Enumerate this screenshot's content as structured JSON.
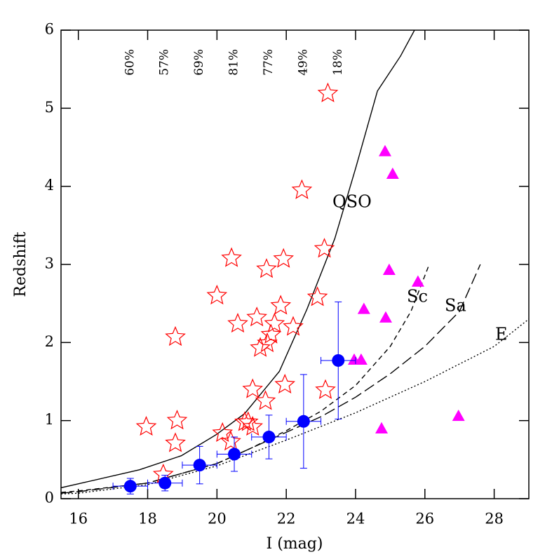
{
  "chart_data": {
    "type": "scatter",
    "xlabel": "I (mag)",
    "ylabel": "Redshift",
    "xlim": [
      15.5,
      29
    ],
    "ylim": [
      0,
      6
    ],
    "xticks": [
      16,
      18,
      20,
      22,
      24,
      26,
      28
    ],
    "yticks": [
      0,
      1,
      2,
      3,
      4,
      5,
      6
    ],
    "stars": {
      "color": "#ff0000",
      "x": [
        23.2,
        22.45,
        23.1,
        20.42,
        21.43,
        21.92,
        20.0,
        22.9,
        21.84,
        20.6,
        21.15,
        21.66,
        22.2,
        18.8,
        21.56,
        21.45,
        21.25,
        21.03,
        23.13,
        21.96,
        21.4,
        17.96,
        18.85,
        18.8,
        20.16,
        20.9,
        21.03,
        20.8,
        20.4,
        18.45
      ],
      "y": [
        5.19,
        3.95,
        3.2,
        3.08,
        2.94,
        3.07,
        2.6,
        2.58,
        2.47,
        2.24,
        2.32,
        2.24,
        2.2,
        2.07,
        2.1,
        1.99,
        1.93,
        1.4,
        1.39,
        1.46,
        1.25,
        0.92,
        1.0,
        0.71,
        0.84,
        0.98,
        0.92,
        0.98,
        0.73,
        0.31
      ]
    },
    "triangles": {
      "color": "#ff00ff",
      "x": [
        24.85,
        25.07,
        24.97,
        24.24,
        25.8,
        24.87,
        23.96,
        24.16,
        24.75,
        26.97
      ],
      "y": [
        4.45,
        4.16,
        2.93,
        2.43,
        2.78,
        2.32,
        1.78,
        1.78,
        0.9,
        1.06
      ]
    },
    "binned": {
      "color": "#0000ff",
      "x": [
        17.5,
        18.5,
        19.5,
        20.5,
        21.5,
        22.5,
        23.5
      ],
      "xerr": [
        0.5,
        0.5,
        0.5,
        0.5,
        0.5,
        0.5,
        0.5
      ],
      "y": [
        0.16,
        0.2,
        0.43,
        0.57,
        0.79,
        0.99,
        1.77
      ],
      "yerr": [
        0.1,
        0.1,
        0.24,
        0.22,
        0.28,
        0.6,
        0.75
      ],
      "completeness": [
        "60%",
        "57%",
        "69%",
        "81%",
        "77%",
        "49%",
        "18%"
      ]
    },
    "curves": [
      {
        "name": "QSO",
        "style": "solid",
        "x": [
          15.5,
          16,
          17.76,
          18.97,
          19.98,
          20.8,
          21.8,
          22.6,
          23.4,
          24.0,
          24.63,
          25.3,
          25.7
        ],
        "y": [
          0.14,
          0.19,
          0.37,
          0.55,
          0.82,
          1.09,
          1.63,
          2.43,
          3.33,
          4.23,
          5.22,
          5.67,
          6.0
        ]
      },
      {
        "name": "Sc",
        "style": "dashed",
        "x": [
          15.5,
          16,
          18,
          20,
          21,
          22,
          23,
          24,
          25,
          25.6,
          26.1
        ],
        "y": [
          0.08,
          0.1,
          0.2,
          0.45,
          0.65,
          0.87,
          1.12,
          1.45,
          1.95,
          2.4,
          2.97
        ]
      },
      {
        "name": "Sa",
        "style": "longdash",
        "x": [
          15.5,
          16,
          18,
          20,
          22,
          23,
          24,
          25,
          26,
          27,
          27.6
        ],
        "y": [
          0.07,
          0.09,
          0.2,
          0.45,
          0.85,
          1.05,
          1.3,
          1.6,
          1.95,
          2.4,
          3.0
        ]
      },
      {
        "name": "E",
        "style": "dotted",
        "x": [
          15.5,
          16,
          18,
          20,
          22,
          24,
          26,
          28,
          29
        ],
        "y": [
          0.06,
          0.07,
          0.18,
          0.42,
          0.75,
          1.1,
          1.5,
          1.95,
          2.3
        ]
      }
    ]
  }
}
